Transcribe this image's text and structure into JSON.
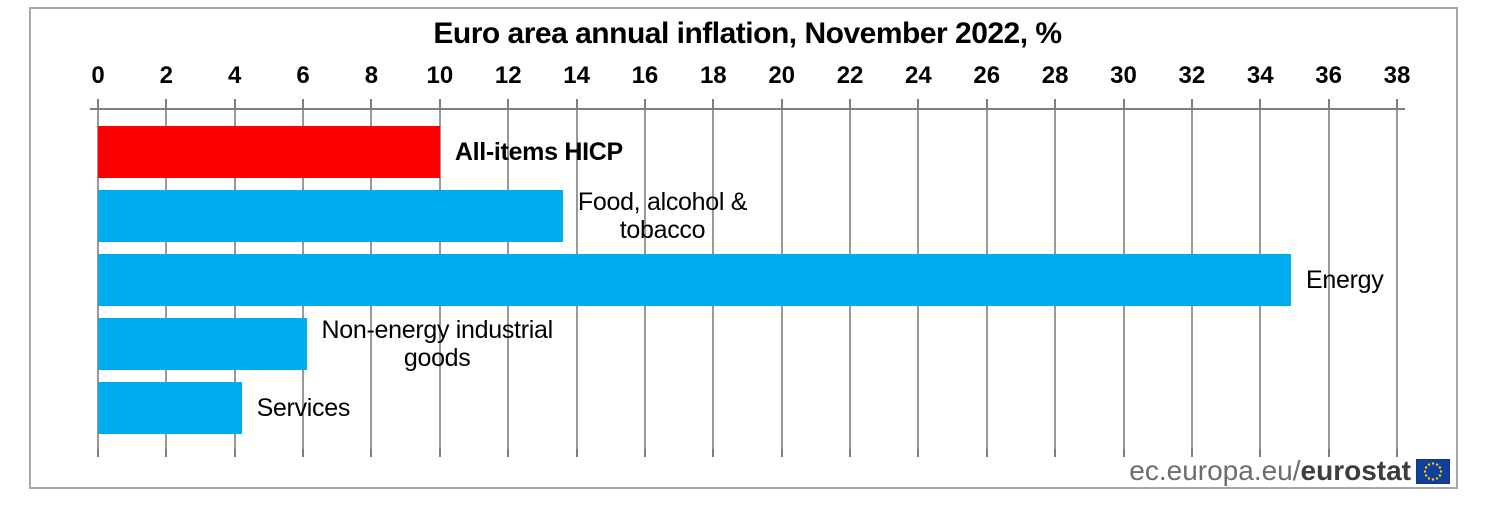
{
  "chart_data": {
    "type": "bar",
    "orientation": "horizontal",
    "title": "Euro area annual inflation, November 2022, %",
    "categories": [
      "All-items HICP",
      "Food, alcohol & tobacco",
      "Energy",
      "Non-energy industrial goods",
      "Services"
    ],
    "values": [
      10.0,
      13.6,
      34.9,
      6.1,
      4.2
    ],
    "unit": "%",
    "xlim": [
      0,
      38
    ],
    "x_ticks": [
      0,
      2,
      4,
      6,
      8,
      10,
      12,
      14,
      16,
      18,
      20,
      22,
      24,
      26,
      28,
      30,
      32,
      34,
      36,
      38
    ],
    "grid": true,
    "axis_position": "top",
    "bar_color_default": "#00aeef",
    "highlight_index": 0,
    "highlight_color": "#fa0000",
    "label_lines": [
      [
        "All-items HICP"
      ],
      [
        "Food, alcohol &",
        "tobacco"
      ],
      [
        "Energy"
      ],
      [
        "Non-energy industrial",
        "goods"
      ],
      [
        "Services"
      ]
    ],
    "label_bold": [
      true,
      false,
      false,
      false,
      false
    ]
  },
  "footer": {
    "url_regular": "ec.europa.eu/",
    "url_bold": "eurostat"
  },
  "colors": {
    "bar_blue": "#00aeef",
    "bar_red": "#fa0000",
    "axis": "#7f7f7f",
    "grid": "#999999",
    "frame_border": "#a8a8a8",
    "text": "#000000",
    "footer_gray": "#6d6d6d",
    "footer_dark": "#3d3d3d",
    "eu_flag_blue": "#123f9b",
    "eu_star_yellow": "#ffcc00"
  }
}
